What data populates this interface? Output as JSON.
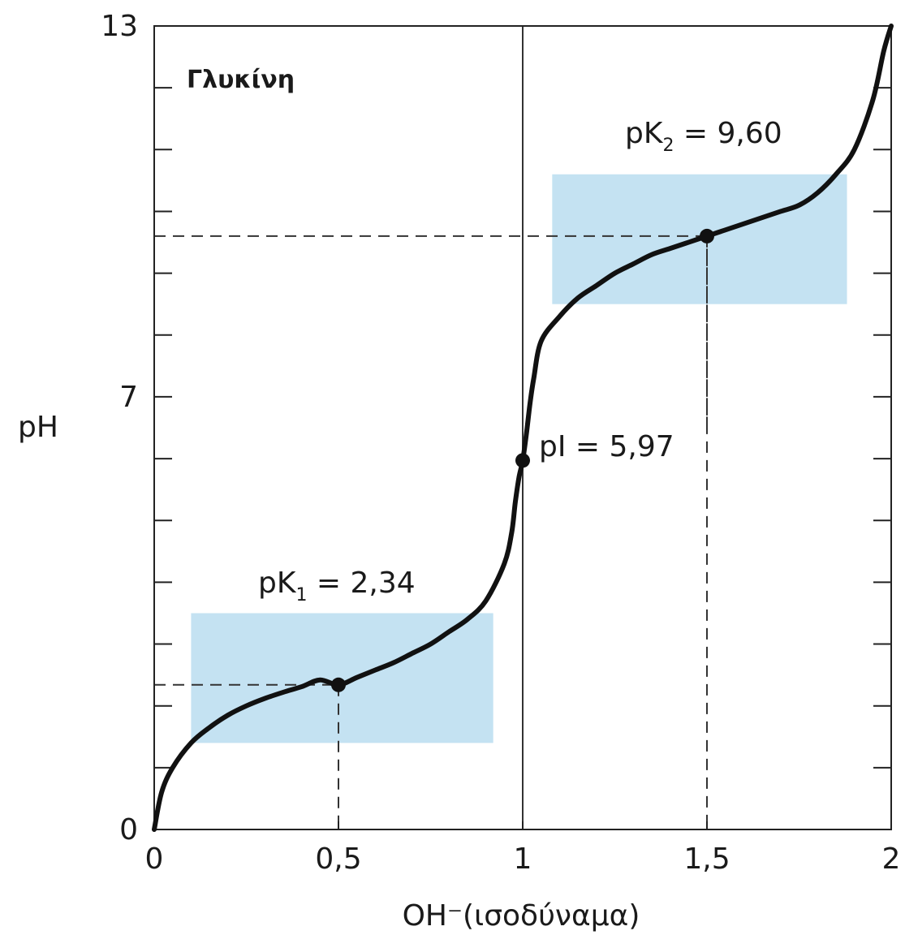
{
  "chart_data": {
    "type": "line",
    "title": "Γλυκίνη",
    "xlabel": "OH⁻(ισοδύναμα)",
    "ylabel": "pH",
    "xlim": [
      0,
      2
    ],
    "ylim": [
      0,
      13
    ],
    "x_ticks": [
      0,
      0.5,
      1,
      1.5,
      2
    ],
    "x_tick_labels": [
      "0",
      "0,5",
      "1",
      "1,5",
      "2"
    ],
    "y_ticks": [
      0,
      7,
      13
    ],
    "y_tick_labels": [
      "0",
      "7",
      "13"
    ],
    "y_minor_tick_step": 1,
    "grid": false,
    "vertical_reference_x": 1,
    "buffer_regions": [
      {
        "x": [
          0.1,
          0.92
        ],
        "y": [
          1.4,
          3.5
        ],
        "color": "#c4e2f2"
      },
      {
        "x": [
          1.08,
          1.88
        ],
        "y": [
          8.5,
          10.6
        ],
        "color": "#c4e2f2"
      }
    ],
    "series": [
      {
        "color": "#111111",
        "x": [
          0,
          0.02,
          0.05,
          0.1,
          0.15,
          0.2,
          0.25,
          0.3,
          0.35,
          0.4,
          0.45,
          0.5,
          0.55,
          0.6,
          0.65,
          0.7,
          0.75,
          0.8,
          0.85,
          0.9,
          0.95,
          0.97,
          0.98,
          0.99,
          1.0,
          1.01,
          1.02,
          1.03,
          1.05,
          1.1,
          1.15,
          1.2,
          1.25,
          1.3,
          1.35,
          1.4,
          1.45,
          1.5,
          1.55,
          1.6,
          1.65,
          1.7,
          1.75,
          1.8,
          1.85,
          1.9,
          1.95,
          1.98,
          2.0
        ],
        "y": [
          0.0,
          0.6,
          1.0,
          1.4,
          1.65,
          1.85,
          2.0,
          2.12,
          2.22,
          2.31,
          2.42,
          2.34,
          2.46,
          2.58,
          2.7,
          2.85,
          3.0,
          3.2,
          3.4,
          3.7,
          4.3,
          4.8,
          5.3,
          5.7,
          5.97,
          6.4,
          6.9,
          7.3,
          7.9,
          8.3,
          8.6,
          8.8,
          9.0,
          9.15,
          9.3,
          9.4,
          9.5,
          9.6,
          9.7,
          9.8,
          9.9,
          10.0,
          10.1,
          10.3,
          10.6,
          11.0,
          11.8,
          12.6,
          13.0
        ]
      }
    ],
    "points": [
      {
        "x": 0.5,
        "y": 2.34
      },
      {
        "x": 1.0,
        "y": 5.97
      },
      {
        "x": 1.5,
        "y": 9.6
      }
    ],
    "annotations": [
      {
        "text_main": "pK",
        "sub": "1",
        "text_rest": " = 2,34"
      },
      {
        "text_main": "pK",
        "sub": "2",
        "text_rest": " = 9,60"
      },
      {
        "text": "pI = 5,97"
      }
    ]
  }
}
